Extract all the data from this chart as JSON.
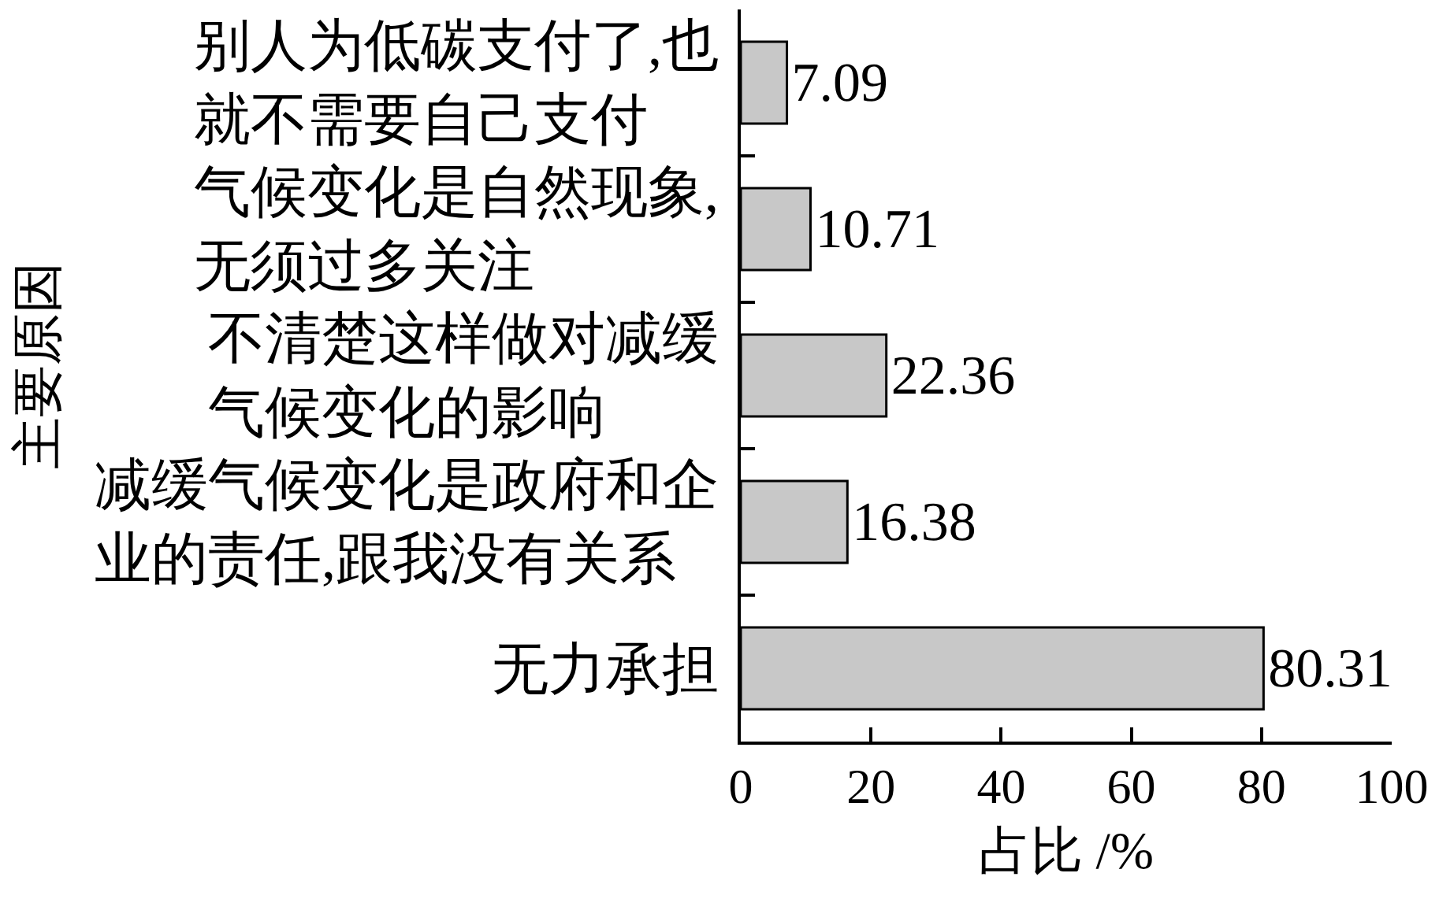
{
  "chart_data": {
    "type": "bar",
    "orientation": "horizontal",
    "categories": [
      "别人为低碳支付了,也就不需要自己支付",
      "气候变化是自然现象,无须过多关注",
      "不清楚这样做对减缓气候变化的影响",
      "减缓气候变化是政府和企业的责任,跟我没有关系",
      "无力承担"
    ],
    "values": [
      7.09,
      10.71,
      22.36,
      16.38,
      80.31
    ],
    "color": "#c8c8c8",
    "xlabel": "占比 /%",
    "ylabel": "主要原因",
    "xlim": [
      0,
      100
    ],
    "xticks": [
      0,
      20,
      40,
      60,
      80,
      100
    ],
    "data_labels": true
  }
}
